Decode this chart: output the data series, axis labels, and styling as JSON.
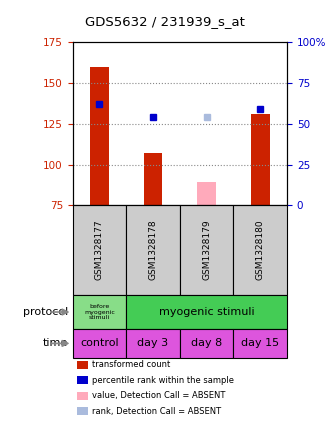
{
  "title": "GDS5632 / 231939_s_at",
  "samples": [
    "GSM1328177",
    "GSM1328178",
    "GSM1328179",
    "GSM1328180"
  ],
  "red_bars": [
    160,
    107,
    null,
    131
  ],
  "pink_bars": [
    null,
    null,
    89,
    null
  ],
  "blue_squares": [
    137,
    129,
    null,
    134
  ],
  "lightblue_squares": [
    null,
    null,
    129,
    null
  ],
  "left_ylim": [
    75,
    175
  ],
  "left_yticks": [
    75,
    100,
    125,
    150,
    175
  ],
  "right_ylim": [
    0,
    100
  ],
  "right_yticks": [
    0,
    25,
    50,
    75,
    100
  ],
  "right_tick_labels": [
    "0",
    "25",
    "50",
    "75",
    "100%"
  ],
  "bar_width": 0.35,
  "red_color": "#cc2200",
  "pink_color": "#ffaabb",
  "blue_color": "#0000cc",
  "lightblue_color": "#aabbdd",
  "time_row": [
    "control",
    "day 3",
    "day 8",
    "day 15"
  ],
  "light_green": "#88dd88",
  "bright_green": "#44cc55",
  "time_color": "#dd55dd",
  "sample_bg_color": "#cccccc",
  "legend_items": [
    {
      "color": "#cc2200",
      "label": "transformed count"
    },
    {
      "color": "#0000cc",
      "label": "percentile rank within the sample"
    },
    {
      "color": "#ffaabb",
      "label": "value, Detection Call = ABSENT"
    },
    {
      "color": "#aabbdd",
      "label": "rank, Detection Call = ABSENT"
    }
  ],
  "gridline_color": "#888888"
}
